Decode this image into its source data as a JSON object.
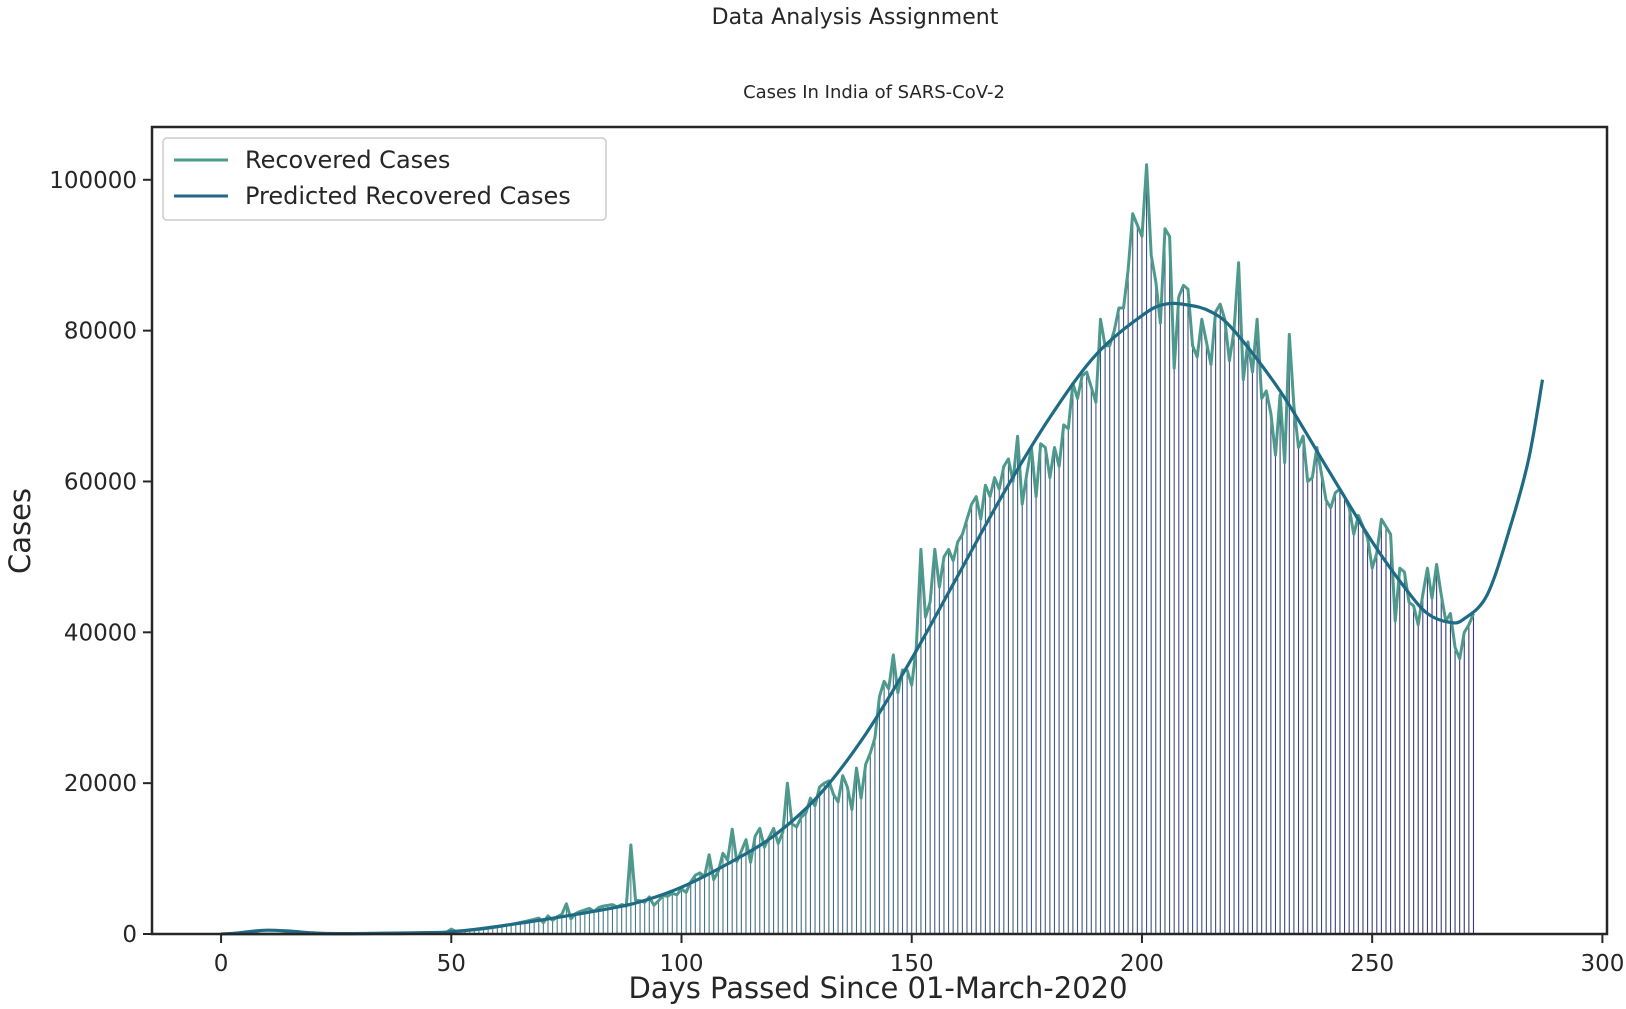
{
  "chart_data": {
    "type": "line",
    "suptitle": "Data Analysis Assignment",
    "title": "Cases In India of  SARS-CoV-2",
    "xlabel": "Days Passed Since 01-March-2020",
    "ylabel": "Cases",
    "xlim": [
      -15,
      301
    ],
    "ylim": [
      0,
      107000
    ],
    "xticks": [
      0,
      50,
      100,
      150,
      200,
      250,
      300
    ],
    "yticks": [
      0,
      20000,
      40000,
      60000,
      80000,
      100000
    ],
    "grid": false,
    "legend_position": "top-left",
    "series": [
      {
        "name": "Recovered  Cases",
        "color": "#4d9a8c",
        "also_drawn_as": "vertical stems",
        "x_start": 0,
        "x_step": 1,
        "values": [
          0,
          0,
          0,
          0,
          0,
          0,
          0,
          0,
          0,
          0,
          0,
          0,
          0,
          0,
          0,
          0,
          0,
          0,
          0,
          0,
          0,
          0,
          0,
          0,
          0,
          0,
          0,
          0,
          0,
          0,
          10,
          10,
          10,
          20,
          20,
          20,
          30,
          30,
          40,
          40,
          50,
          60,
          70,
          80,
          100,
          120,
          150,
          180,
          210,
          250,
          650,
          330,
          380,
          430,
          490,
          550,
          610,
          680,
          760,
          850,
          940,
          1050,
          1150,
          1270,
          1390,
          1520,
          1660,
          1800,
          1950,
          2110,
          1500,
          2400,
          1800,
          2300,
          2600,
          4000,
          2000,
          2700,
          3000,
          3200,
          3400,
          3000,
          3500,
          3700,
          3800,
          3900,
          3600,
          3900,
          3700,
          11800,
          4500,
          4400,
          4200,
          4900,
          3800,
          4400,
          5100,
          5000,
          5400,
          5200,
          6000,
          5500,
          6900,
          7800,
          8100,
          7600,
          10500,
          7200,
          8300,
          10700,
          9800,
          13900,
          9600,
          11000,
          12500,
          9500,
          13000,
          14000,
          11500,
          12800,
          14000,
          12000,
          13500,
          20000,
          14600,
          14200,
          15500,
          16000,
          18000,
          17000,
          19500,
          20000,
          20300,
          18500,
          17500,
          21000,
          19500,
          16500,
          22000,
          18000,
          22500,
          24000,
          26000,
          31500,
          33500,
          32500,
          37000,
          32000,
          35000,
          35000,
          33000,
          38000,
          51000,
          42000,
          44000,
          51000,
          46000,
          50000,
          51000,
          49500,
          52000,
          53000,
          55000,
          57000,
          58000,
          55000,
          59500,
          58000,
          60500,
          59000,
          62000,
          63000,
          60000,
          66000,
          57000,
          61000,
          64500,
          58000,
          65000,
          64500,
          60500,
          64500,
          62000,
          67500,
          67000,
          73000,
          71000,
          74000,
          74500,
          72500,
          70500,
          81500,
          78000,
          78000,
          80000,
          83000,
          83000,
          88000,
          95500,
          94000,
          92500,
          102000,
          90000,
          86500,
          81000,
          93500,
          92500,
          75000,
          84500,
          86000,
          85500,
          78000,
          76500,
          81500,
          78500,
          75500,
          82500,
          83500,
          81500,
          76000,
          80000,
          89000,
          73500,
          78500,
          74500,
          81500,
          71000,
          72000,
          69000,
          63500,
          71500,
          62500,
          79500,
          70000,
          64500,
          66000,
          60000,
          60500,
          64500,
          61000,
          57500,
          56500,
          58500,
          59000,
          58000,
          56500,
          53000,
          55500,
          54000,
          52500,
          48500,
          50500,
          55000,
          54000,
          53000,
          41500,
          48500,
          48000,
          44000,
          43500,
          41000,
          45000,
          48500,
          44500,
          49000,
          45000,
          41500,
          42500,
          38000,
          36500,
          40000,
          41000,
          42500
        ]
      },
      {
        "name": "Predicted Recovered  Cases",
        "color": "#1f6b85",
        "points": [
          [
            0,
            0
          ],
          [
            3,
            100
          ],
          [
            6,
            300
          ],
          [
            10,
            500
          ],
          [
            15,
            380
          ],
          [
            20,
            150
          ],
          [
            25,
            50
          ],
          [
            35,
            100
          ],
          [
            47,
            200
          ],
          [
            50,
            300
          ],
          [
            55,
            600
          ],
          [
            60,
            1000
          ],
          [
            70,
            1900
          ],
          [
            80,
            2900
          ],
          [
            90,
            4100
          ],
          [
            100,
            6200
          ],
          [
            110,
            9300
          ],
          [
            120,
            13000
          ],
          [
            130,
            18500
          ],
          [
            140,
            26500
          ],
          [
            150,
            36500
          ],
          [
            160,
            47500
          ],
          [
            170,
            58500
          ],
          [
            180,
            68500
          ],
          [
            190,
            76800
          ],
          [
            200,
            82000
          ],
          [
            205,
            83500
          ],
          [
            210,
            83400
          ],
          [
            215,
            82500
          ],
          [
            220,
            80000
          ],
          [
            230,
            72000
          ],
          [
            240,
            62000
          ],
          [
            250,
            52000
          ],
          [
            257,
            46000
          ],
          [
            262,
            42500
          ],
          [
            267,
            41300
          ],
          [
            270,
            41800
          ],
          [
            275,
            45000
          ],
          [
            280,
            54000
          ],
          [
            284,
            63000
          ],
          [
            287,
            73500
          ]
        ]
      }
    ]
  }
}
